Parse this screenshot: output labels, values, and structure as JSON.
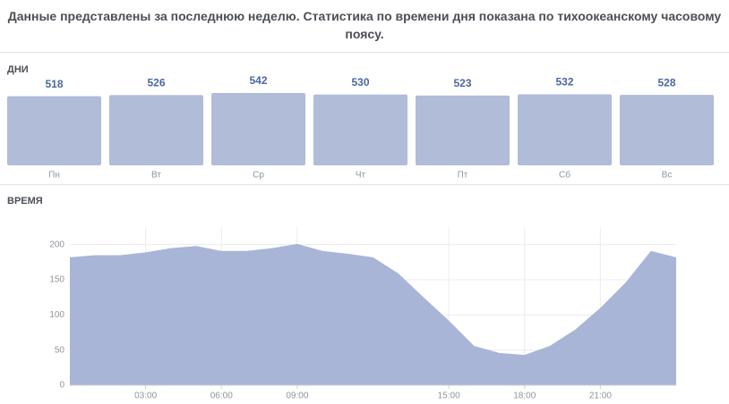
{
  "header": {
    "text": "Данные представлены за последнюю неделю. Статистика по времени дня показана по тихоокеанскому часовому поясу."
  },
  "chart_data": [
    {
      "type": "bar",
      "title": "ДНИ",
      "categories": [
        "Пн",
        "Вт",
        "Ср",
        "Чт",
        "Пт",
        "Сб",
        "Вс"
      ],
      "values": [
        518,
        526,
        542,
        530,
        523,
        532,
        528
      ],
      "color": "#b0bcd8"
    },
    {
      "type": "area",
      "title": "ВРЕМЯ",
      "x": [
        0,
        1,
        2,
        3,
        4,
        5,
        6,
        7,
        8,
        9,
        10,
        11,
        12,
        13,
        14,
        15,
        16,
        17,
        18,
        19,
        20,
        21,
        22,
        23,
        24
      ],
      "values": [
        182,
        185,
        185,
        189,
        195,
        198,
        191,
        191,
        195,
        201,
        191,
        187,
        182,
        159,
        125,
        92,
        56,
        46,
        43,
        56,
        79,
        110,
        146,
        191,
        182
      ],
      "xlim": [
        0,
        24
      ],
      "ylim": [
        0,
        225
      ],
      "yticks": [
        0,
        50,
        100,
        150,
        200
      ],
      "xticks": [
        {
          "value": 3,
          "label": "03:00"
        },
        {
          "value": 6,
          "label": "06:00"
        },
        {
          "value": 9,
          "label": "09:00"
        },
        {
          "value": 15,
          "label": "15:00"
        },
        {
          "value": 18,
          "label": "18:00"
        },
        {
          "value": 21,
          "label": "21:00"
        }
      ],
      "color": "#a8b5d6",
      "grid": true
    }
  ]
}
